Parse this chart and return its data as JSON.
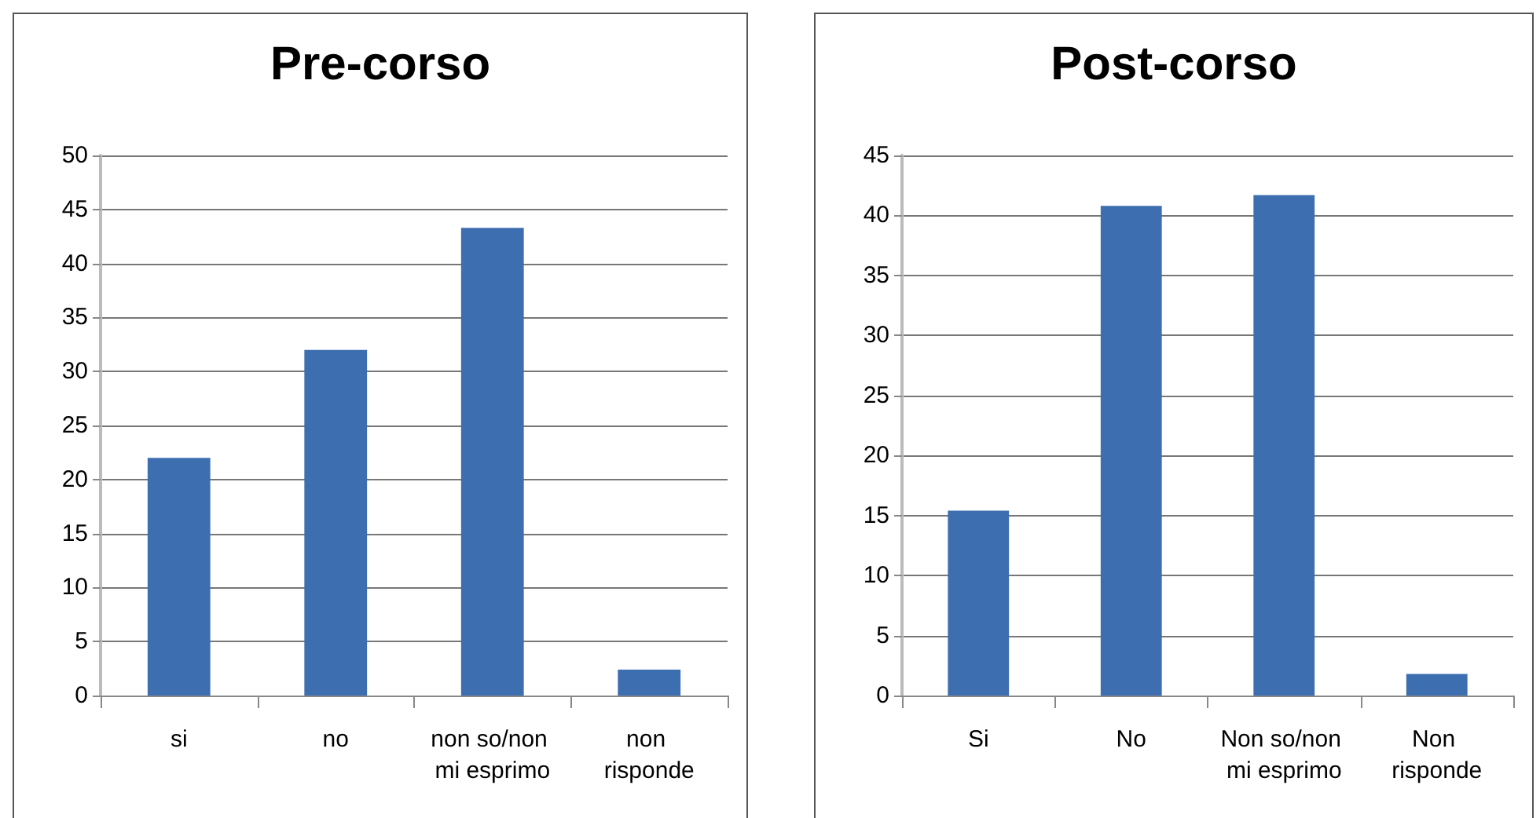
{
  "chart_data": [
    {
      "type": "bar",
      "title": "Pre-corso",
      "categories": [
        "si",
        "no",
        "non so/non mi esprimo",
        "non risponde"
      ],
      "values": [
        22,
        32,
        43.3,
        2.4
      ],
      "color": "#3d6eb0",
      "ylim": [
        0,
        50
      ],
      "yticks": [
        0,
        5,
        10,
        15,
        20,
        25,
        30,
        35,
        40,
        45,
        50
      ],
      "grid": "y"
    },
    {
      "type": "bar",
      "title": "Post-corso",
      "categories": [
        "Si",
        "No",
        "Non so/non mi esprimo",
        "Non risponde"
      ],
      "values": [
        15.4,
        40.8,
        41.7,
        1.8
      ],
      "color": "#3d6eb0",
      "ylim": [
        0,
        45
      ],
      "yticks": [
        0,
        5,
        10,
        15,
        20,
        25,
        30,
        35,
        40,
        45
      ],
      "grid": "y"
    }
  ]
}
